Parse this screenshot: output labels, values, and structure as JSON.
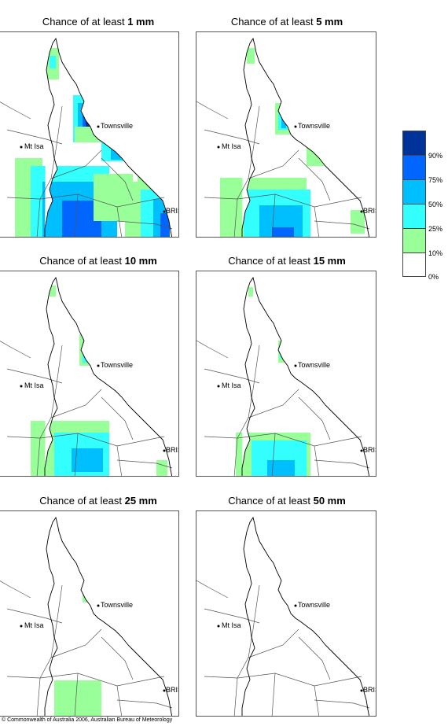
{
  "panels": [
    {
      "prefix": "Chance of at least ",
      "amount": "1 mm",
      "level": 6
    },
    {
      "prefix": "Chance of at least ",
      "amount": "5 mm",
      "level": 5
    },
    {
      "prefix": "Chance of at least ",
      "amount": "10 mm",
      "level": 4
    },
    {
      "prefix": "Chance of at least ",
      "amount": "15 mm",
      "level": 3
    },
    {
      "prefix": "Chance of at least ",
      "amount": "25 mm",
      "level": 1
    },
    {
      "prefix": "Chance of at least ",
      "amount": "50 mm",
      "level": 0
    }
  ],
  "places": {
    "townsville": "Townsville",
    "mt_isa": "Mt Isa",
    "bris": "BRIS"
  },
  "legend": {
    "swatches": [
      "#003399",
      "#0066ff",
      "#00bfff",
      "#33ffff",
      "#99ff99",
      "#ffffff"
    ],
    "labels": [
      "90%",
      "75%",
      "50%",
      "25%",
      "10%",
      "0%"
    ]
  },
  "footer": "© Commonwealth of Australia 2006, Australian Bureau of Meteorology"
}
